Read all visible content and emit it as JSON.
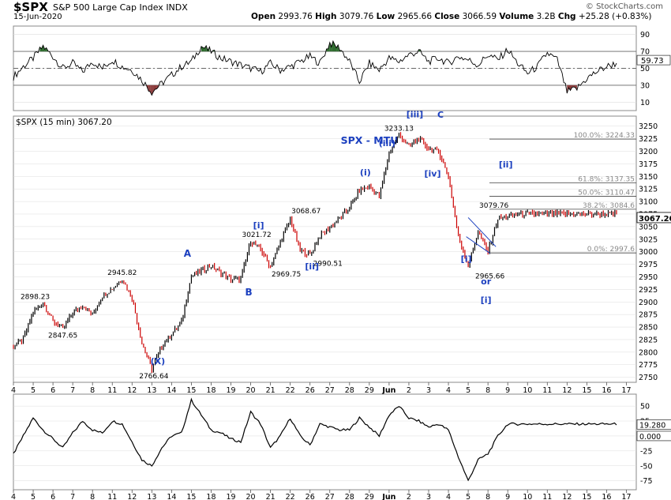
{
  "header": {
    "symbol": "$SPX",
    "name": "S&P 500 Large Cap Index",
    "exchange": "INDX",
    "date": "15-Jun-2020",
    "open_label": "Open",
    "open": "2993.76",
    "high_label": "High",
    "high": "3079.76",
    "low_label": "Low",
    "low": "2965.66",
    "close_label": "Close",
    "close": "3066.59",
    "volume_label": "Volume",
    "volume": "3.2B",
    "chg_label": "Chg",
    "chg": "+25.28 (+0.83%)",
    "logo": "© StockCharts.com"
  },
  "colors": {
    "up": "#000000",
    "down": "#cc0000",
    "wave": "#1b3fbf",
    "rsi_over": "#2e6b2e",
    "rsi_under": "#8b3a3a",
    "grid": "#dddddd"
  },
  "chart_data": [
    {
      "type": "line",
      "panel": "RSI",
      "y_ticks": [
        10,
        30,
        50,
        70,
        90
      ],
      "ylim": [
        0,
        100
      ],
      "current_label": "59.73",
      "overbought": 70,
      "oversold": 30,
      "series": [
        {
          "x": [
            0,
            0.5,
            1,
            1.5,
            2,
            2.5,
            3,
            3.5,
            4,
            4.5,
            5,
            5.5,
            6,
            6.5,
            7,
            7.5,
            8,
            8.5,
            9,
            9.5,
            10,
            10.5,
            11,
            11.5,
            12,
            12.5,
            13,
            13.5,
            14,
            14.5,
            15,
            15.5,
            16,
            16.5,
            17,
            17.5,
            18,
            18.5,
            19,
            19.5,
            20,
            20.5,
            21,
            21.5,
            22,
            22.5,
            23,
            23.5,
            24,
            24.5,
            25,
            25.5,
            26,
            26.5,
            27,
            27.5,
            28,
            28.5,
            29,
            29.5,
            30,
            30.5,
            31,
            31.5
          ],
          "values": [
            40,
            52,
            62,
            76,
            64,
            50,
            56,
            46,
            58,
            50,
            60,
            52,
            48,
            36,
            22,
            32,
            42,
            52,
            58,
            76,
            70,
            62,
            58,
            54,
            50,
            46,
            56,
            48,
            52,
            58,
            64,
            56,
            80,
            74,
            58,
            34,
            56,
            48,
            62,
            58,
            66,
            70,
            58,
            62,
            56,
            64,
            60,
            54,
            66,
            60,
            72,
            56,
            44,
            52,
            68,
            60,
            22,
            26,
            38,
            46,
            52,
            56,
            66,
            60
          ]
        }
      ]
    },
    {
      "type": "line",
      "panel": "price",
      "title": "$SPX (15 min) 3067.20",
      "subtitle": "SPX - MTU",
      "ylim": [
        2740,
        3270
      ],
      "y_ticks": [
        2750,
        2775,
        2800,
        2825,
        2850,
        2875,
        2900,
        2925,
        2950,
        2975,
        3000,
        3025,
        3050,
        3075,
        3100,
        3125,
        3150,
        3175,
        3200,
        3225,
        3250
      ],
      "current_label": "3067.20",
      "x_tick_labels": [
        "4",
        "5",
        "6",
        "7",
        "8",
        "11",
        "12",
        "13",
        "14",
        "15",
        "18",
        "19",
        "20",
        "21",
        "22",
        "26",
        "27",
        "28",
        "29",
        "Jun",
        "2",
        "3",
        "4",
        "5",
        "8",
        "9",
        "10",
        "11",
        "12",
        "15",
        "16",
        "17"
      ],
      "series": [
        {
          "x": [
            0,
            0.5,
            1,
            1.5,
            2,
            2.5,
            3,
            3.5,
            4,
            4.5,
            5,
            5.5,
            6,
            6.5,
            7,
            7.5,
            8,
            8.5,
            9,
            9.5,
            10,
            10.5,
            11,
            11.5,
            12,
            12.5,
            13,
            13.5,
            14,
            14.5,
            15,
            15.5,
            16,
            16.5,
            17,
            17.5,
            18,
            18.5,
            19,
            19.5,
            20,
            20.5,
            21,
            21.5,
            22,
            22.5,
            23,
            23.5,
            24,
            24.5,
            25,
            25.5,
            26,
            26.5,
            27,
            27.5,
            28,
            28.5,
            29,
            29.5,
            30,
            30.5,
            31,
            31.5
          ],
          "values": [
            2812,
            2826,
            2880,
            2898,
            2862,
            2847,
            2878,
            2893,
            2875,
            2912,
            2927,
            2946,
            2908,
            2818,
            2767,
            2812,
            2836,
            2860,
            2952,
            2962,
            2972,
            2958,
            2945,
            2946,
            3021,
            3005,
            2970,
            3020,
            3065,
            3002,
            2994,
            3032,
            3048,
            3067,
            3088,
            3122,
            3130,
            3110,
            3196,
            3233,
            3210,
            3225,
            3205,
            3200,
            3150,
            3030,
            2972,
            3040,
            3000,
            3066,
            3070,
            3075,
            3075,
            3075,
            3075,
            3075,
            3075,
            3075,
            3075,
            3075,
            3075,
            3075,
            3075,
            3075
          ]
        }
      ],
      "price_labels": [
        "2898.23",
        "2847.65",
        "2945.82",
        "2766.64",
        "3021.72",
        "2969.75",
        "3068.67",
        "2990.51",
        "3233.13",
        "3079.76",
        "2965.66"
      ],
      "wave_labels": [
        "(X)",
        "A",
        "B",
        "[i]",
        "[ii]",
        "(i)",
        "(iii)",
        "[iii]",
        "C",
        "[iv]",
        "[ii]",
        "[i]",
        "or",
        "[i]"
      ],
      "fib_levels": [
        {
          "label": "100.0%: 3224.33",
          "value": 3224.33
        },
        {
          "label": "61.8%: 3137.35",
          "value": 3137.35
        },
        {
          "label": "50.0%: 3110.47",
          "value": 3110.47
        },
        {
          "label": "38.2%: 3084.6",
          "value": 3084.6
        },
        {
          "label": "0.0%: 2997.6",
          "value": 2997.6
        }
      ]
    },
    {
      "type": "line",
      "panel": "oscillator",
      "y_ticks": [
        50,
        25,
        0,
        -25,
        -50,
        -75
      ],
      "ylim": [
        -90,
        70
      ],
      "current_labels": [
        "19.280",
        "0.000"
      ],
      "x_tick_labels": [
        "4",
        "5",
        "6",
        "7",
        "8",
        "11",
        "12",
        "13",
        "14",
        "15",
        "18",
        "19",
        "20",
        "21",
        "22",
        "26",
        "27",
        "28",
        "29",
        "Jun",
        "2",
        "3",
        "4",
        "5",
        "8",
        "9",
        "10",
        "11",
        "12",
        "15",
        "16",
        "17"
      ],
      "series": [
        {
          "x": [
            0,
            0.5,
            1,
            1.5,
            2,
            2.5,
            3,
            3.5,
            4,
            4.5,
            5,
            5.5,
            6,
            6.5,
            7,
            7.5,
            8,
            8.5,
            9,
            9.5,
            10,
            10.5,
            11,
            11.5,
            12,
            12.5,
            13,
            13.5,
            14,
            14.5,
            15,
            15.5,
            16,
            16.5,
            17,
            17.5,
            18,
            18.5,
            19,
            19.5,
            20,
            20.5,
            21,
            21.5,
            22,
            22.5,
            23,
            23.5,
            24,
            24.5,
            25,
            25.5,
            26,
            26.5,
            27,
            27.5,
            28,
            28.5,
            29,
            29.5,
            30,
            30.5,
            31,
            31.5
          ],
          "values": [
            -30,
            0,
            30,
            10,
            -5,
            -20,
            5,
            25,
            10,
            5,
            25,
            20,
            -10,
            -40,
            -50,
            -20,
            0,
            5,
            60,
            35,
            10,
            5,
            -5,
            -10,
            40,
            20,
            -20,
            0,
            30,
            0,
            -15,
            20,
            15,
            10,
            10,
            30,
            15,
            0,
            35,
            50,
            30,
            25,
            15,
            20,
            10,
            -35,
            -75,
            -40,
            -30,
            0,
            20,
            20,
            20,
            20,
            20,
            20,
            20,
            20,
            20,
            20,
            20,
            20,
            20,
            20
          ]
        }
      ]
    }
  ]
}
